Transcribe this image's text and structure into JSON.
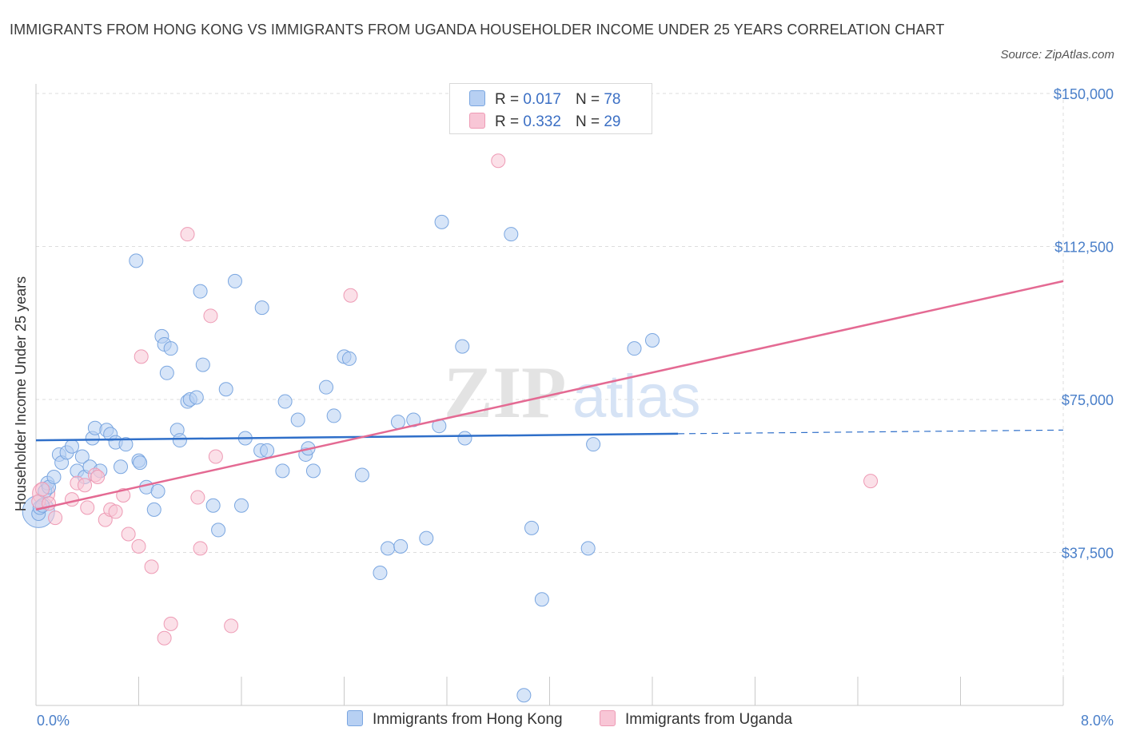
{
  "title": "IMMIGRANTS FROM HONG KONG VS IMMIGRANTS FROM UGANDA HOUSEHOLDER INCOME UNDER 25 YEARS CORRELATION CHART",
  "source": "Source: ZipAtlas.com",
  "legend": {
    "r_label": "R =",
    "n_label": "N =",
    "rows": [
      {
        "r": "0.017",
        "n": "78"
      },
      {
        "r": "0.332",
        "n": "29"
      }
    ]
  },
  "colors": {
    "hong_kong_fill": "#b7d0f3",
    "hong_kong_stroke": "#7aa6e0",
    "hong_kong_line": "#2f6fc9",
    "uganda_fill": "#f8c6d6",
    "uganda_stroke": "#ee9bb5",
    "uganda_line": "#e46a93",
    "axis_text": "#4a7fc9",
    "grid": "#dddddd"
  },
  "chart_data": {
    "type": "scatter",
    "title": "IMMIGRANTS FROM HONG KONG VS IMMIGRANTS FROM UGANDA HOUSEHOLDER INCOME UNDER 25 YEARS CORRELATION CHART",
    "xlabel": "",
    "ylabel": "Householder Income Under 25 years",
    "xlim": [
      0,
      8
    ],
    "ylim": [
      0,
      150000
    ],
    "x_tick_labels": [
      "0.0%",
      "8.0%"
    ],
    "y_ticks": [
      37500,
      75000,
      112500,
      150000
    ],
    "y_tick_labels": [
      "$37,500",
      "$75,000",
      "$112,500",
      "$150,000"
    ],
    "grid": true,
    "legend_position": "top-center",
    "series": [
      {
        "name": "Immigrants from Hong Kong",
        "r": 0.017,
        "n": 78,
        "trend": {
          "x": [
            0,
            5.0
          ],
          "y": [
            65000,
            66600
          ],
          "dashed_to_x": 8.0,
          "dashed_end_y": 67500
        },
        "points": [
          [
            0.02,
            47000
          ],
          [
            0.03,
            48500
          ],
          [
            0.05,
            49000
          ],
          [
            0.07,
            52500
          ],
          [
            0.09,
            54500
          ],
          [
            0.1,
            53500
          ],
          [
            0.14,
            56000
          ],
          [
            0.18,
            61500
          ],
          [
            0.2,
            59500
          ],
          [
            0.24,
            62000
          ],
          [
            0.28,
            63500
          ],
          [
            0.32,
            57500
          ],
          [
            0.36,
            61000
          ],
          [
            0.38,
            56000
          ],
          [
            0.42,
            58500
          ],
          [
            0.44,
            65500
          ],
          [
            0.46,
            68000
          ],
          [
            0.5,
            57500
          ],
          [
            0.55,
            67500
          ],
          [
            0.58,
            66500
          ],
          [
            0.62,
            64500
          ],
          [
            0.66,
            58500
          ],
          [
            0.7,
            64000
          ],
          [
            0.8,
            60000
          ],
          [
            0.81,
            59500
          ],
          [
            0.86,
            53500
          ],
          [
            0.92,
            48000
          ],
          [
            0.95,
            52500
          ],
          [
            0.98,
            90500
          ],
          [
            1.0,
            88500
          ],
          [
            1.02,
            81500
          ],
          [
            1.05,
            87500
          ],
          [
            1.1,
            67500
          ],
          [
            1.12,
            65000
          ],
          [
            1.18,
            74500
          ],
          [
            1.2,
            75000
          ],
          [
            1.25,
            75500
          ],
          [
            1.3,
            83500
          ],
          [
            1.38,
            49000
          ],
          [
            1.42,
            43000
          ],
          [
            1.48,
            77500
          ],
          [
            1.55,
            104000
          ],
          [
            1.6,
            49000
          ],
          [
            1.63,
            65500
          ],
          [
            1.75,
            62500
          ],
          [
            1.8,
            62500
          ],
          [
            1.76,
            97500
          ],
          [
            1.92,
            57500
          ],
          [
            1.94,
            74500
          ],
          [
            2.04,
            70000
          ],
          [
            2.1,
            61500
          ],
          [
            2.12,
            63000
          ],
          [
            2.16,
            57500
          ],
          [
            2.26,
            78000
          ],
          [
            2.32,
            71000
          ],
          [
            2.4,
            85500
          ],
          [
            2.44,
            85000
          ],
          [
            2.54,
            56500
          ],
          [
            2.68,
            32500
          ],
          [
            2.74,
            38500
          ],
          [
            2.82,
            69500
          ],
          [
            2.84,
            39000
          ],
          [
            2.94,
            70000
          ],
          [
            3.04,
            41000
          ],
          [
            3.14,
            68500
          ],
          [
            3.16,
            118500
          ],
          [
            3.32,
            88000
          ],
          [
            3.34,
            65500
          ],
          [
            3.7,
            115500
          ],
          [
            3.86,
            43500
          ],
          [
            3.8,
            2500
          ],
          [
            3.94,
            26000
          ],
          [
            4.3,
            38500
          ],
          [
            4.34,
            64000
          ],
          [
            4.66,
            87500
          ],
          [
            4.8,
            89500
          ],
          [
            0.78,
            109000
          ],
          [
            1.28,
            101500
          ]
        ]
      },
      {
        "name": "Immigrants from Uganda",
        "r": 0.332,
        "n": 29,
        "trend": {
          "x": [
            0,
            8.0
          ],
          "y": [
            48000,
            104000
          ]
        },
        "points": [
          [
            0.02,
            50000
          ],
          [
            0.05,
            53000
          ],
          [
            0.1,
            49500
          ],
          [
            0.15,
            46000
          ],
          [
            0.28,
            50500
          ],
          [
            0.32,
            54500
          ],
          [
            0.38,
            54000
          ],
          [
            0.4,
            48500
          ],
          [
            0.46,
            56500
          ],
          [
            0.54,
            45500
          ],
          [
            0.58,
            48000
          ],
          [
            0.62,
            47500
          ],
          [
            0.68,
            51500
          ],
          [
            0.72,
            42000
          ],
          [
            0.8,
            39000
          ],
          [
            0.82,
            85500
          ],
          [
            0.9,
            34000
          ],
          [
            1.0,
            16500
          ],
          [
            1.05,
            20000
          ],
          [
            1.18,
            115500
          ],
          [
            1.26,
            51000
          ],
          [
            1.28,
            38500
          ],
          [
            1.36,
            95500
          ],
          [
            1.4,
            61000
          ],
          [
            1.52,
            19500
          ],
          [
            2.45,
            100500
          ],
          [
            3.6,
            133500
          ],
          [
            6.5,
            55000
          ],
          [
            0.48,
            56000
          ]
        ]
      }
    ]
  },
  "bottom_legend": [
    "Immigrants from Hong Kong",
    "Immigrants from Uganda"
  ]
}
